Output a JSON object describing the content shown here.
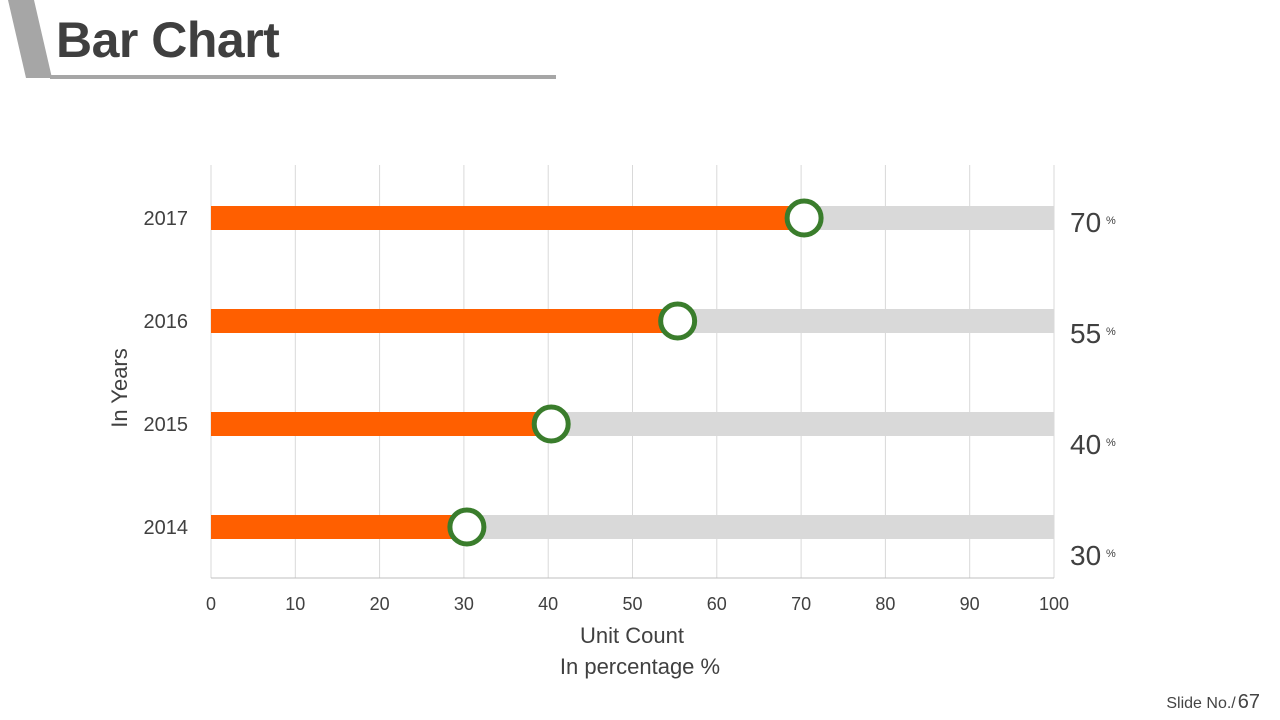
{
  "slide": {
    "title": "Bar Chart",
    "footer_label": "Slide No./",
    "footer_number": "67"
  },
  "colors": {
    "bar": "#ff5f00",
    "track": "#d9d9d9",
    "marker": "#3a7d2c",
    "grid": "#d9d9d9",
    "text": "#404040"
  },
  "chart_data": {
    "type": "bar",
    "orientation": "horizontal",
    "categories": [
      "2014",
      "2015",
      "2016",
      "2017"
    ],
    "values": [
      30,
      40,
      55,
      70
    ],
    "value_labels": [
      "30",
      "40",
      "55",
      "70"
    ],
    "value_unit": "%",
    "xlim": [
      0,
      100
    ],
    "xticks": [
      0,
      10,
      20,
      30,
      40,
      50,
      60,
      70,
      80,
      90,
      100
    ],
    "xlabel": "Unit Count",
    "xlabel_sub": "In percentage  %",
    "ylabel": "In Years",
    "grid": true,
    "legend": false
  }
}
